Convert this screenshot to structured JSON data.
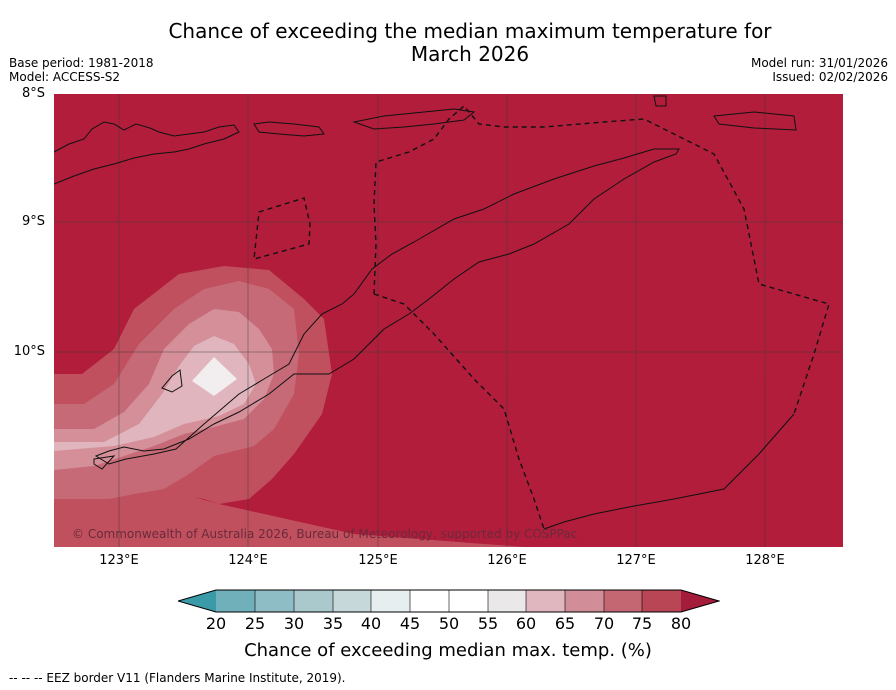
{
  "title_line1": "Chance of exceeding the median maximum temperature for",
  "title_line2": "March 2026",
  "base_period": "Base period: 1981-2018",
  "model": "Model: ACCESS-S2",
  "model_run": "Model run: 31/01/2026",
  "issued": "Issued: 02/02/2026",
  "lat_labels": [
    "8°S",
    "9°S",
    "10°S"
  ],
  "lon_labels": [
    "123°E",
    "124°E",
    "125°E",
    "126°E",
    "127°E",
    "128°E"
  ],
  "copyright": "© Commonwealth of Australia 2026, Bureau of Meteorology, supported by COSPPac",
  "colorbar": {
    "ticks": [
      "20",
      "25",
      "30",
      "35",
      "40",
      "45",
      "50",
      "55",
      "60",
      "65",
      "70",
      "75",
      "80"
    ],
    "colors": [
      "#3a9aa8",
      "#6fb0bb",
      "#8fbdc5",
      "#a9c9cd",
      "#c6d8da",
      "#e6eef0",
      "#ffffff",
      "#ffffff",
      "#eae8e9",
      "#e0b7bf",
      "#d18d98",
      "#c56773",
      "#b84655",
      "#a51b3a"
    ],
    "label": "Chance of exceeding median max. temp. (%)"
  },
  "footnote": "--  --  -- EEZ border V11 (Flanders Marine Institute, 2019).",
  "map_colors": {
    "band_80_plus": "#b11d3b",
    "band_75_80": "#c0505e",
    "band_70_75": "#c76a77",
    "band_65_70": "#d48f99",
    "band_60_65": "#e0b5bd",
    "band_55_60": "#f2eeef"
  }
}
